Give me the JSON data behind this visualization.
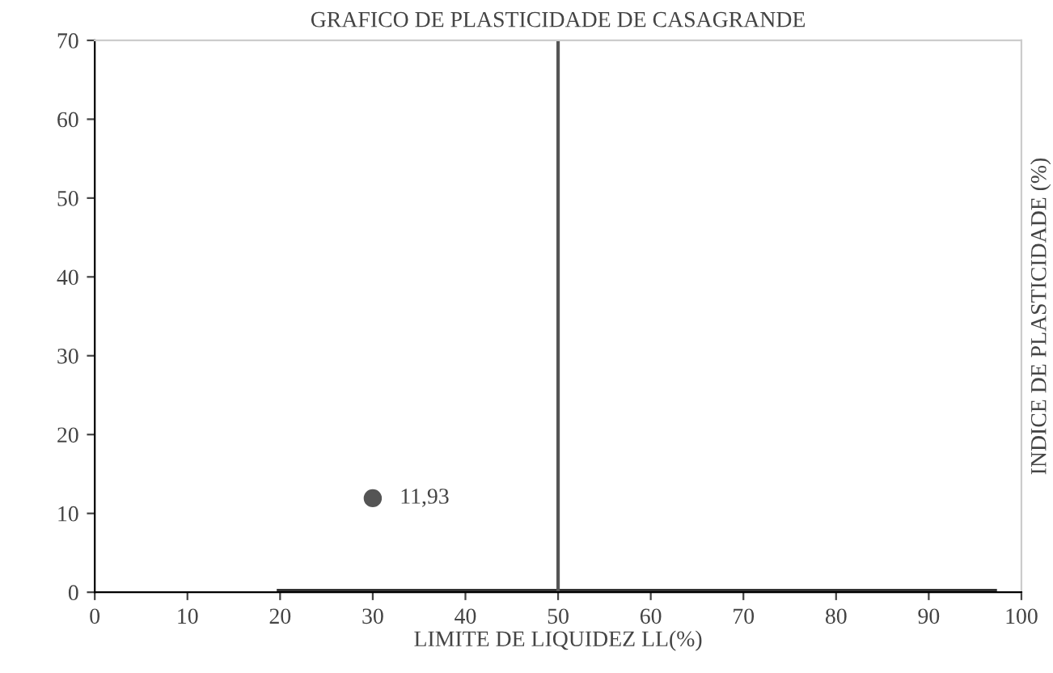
{
  "chart_data": {
    "type": "scatter",
    "title": "GRAFICO DE PLASTICIDADE DE CASAGRANDE",
    "xlabel": "LIMITE DE LIQUIDEZ LL(%)",
    "ylabel": "INDICE DE PLASTICIDADE (%)",
    "series": [
      {
        "type": "line",
        "color": "#333333",
        "x": [
          20,
          97
        ],
        "values": [
          0,
          0
        ]
      },
      {
        "color": "#555555",
        "x": [
          30
        ],
        "values": [
          11.93
        ],
        "value_labels": [
          "11,93"
        ],
        "marker": "circle"
      }
    ],
    "ref_lines": [
      {
        "axis": "x",
        "value": 50,
        "color": "#555555"
      }
    ],
    "xlim": [
      0,
      100
    ],
    "xticks": [
      0,
      10,
      20,
      30,
      40,
      50,
      60,
      70,
      80,
      90,
      100
    ],
    "ylim": [
      0,
      70
    ],
    "yticks": [
      0,
      10,
      20,
      30,
      40,
      50,
      60,
      70
    ],
    "grid": false,
    "legend": false
  }
}
